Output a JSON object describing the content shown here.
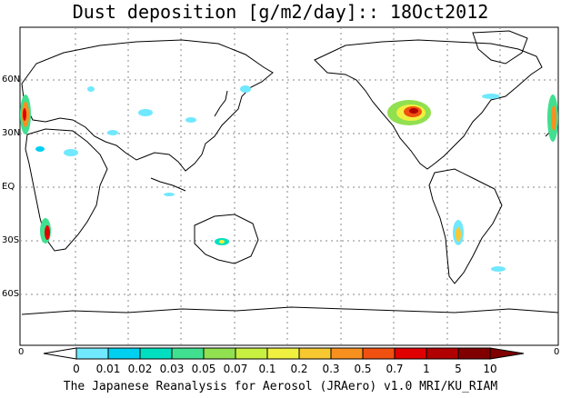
{
  "title": "Dust deposition [g/m2/day]:: 18Oct2012",
  "lat_labels": [
    "60N",
    "30N",
    "EQ",
    "30S",
    "60S"
  ],
  "colorbar": {
    "end_labels": [
      "0",
      "0"
    ],
    "ticks": [
      "0",
      "0.01",
      "0.02",
      "0.03",
      "0.05",
      "0.07",
      "0.1",
      "0.2",
      "0.3",
      "0.5",
      "0.7",
      "1",
      "5",
      "10"
    ],
    "colors": [
      "#ffffff",
      "#70e8ff",
      "#00d0f0",
      "#00e0c0",
      "#40e090",
      "#90e050",
      "#c8f040",
      "#f0f040",
      "#f8c830",
      "#f89020",
      "#f05010",
      "#e00000",
      "#b00000",
      "#800000"
    ]
  },
  "credit": "The Japanese Reanalysis for Aerosol (JRAero) v1.0 MRI/KU_RIAM"
}
